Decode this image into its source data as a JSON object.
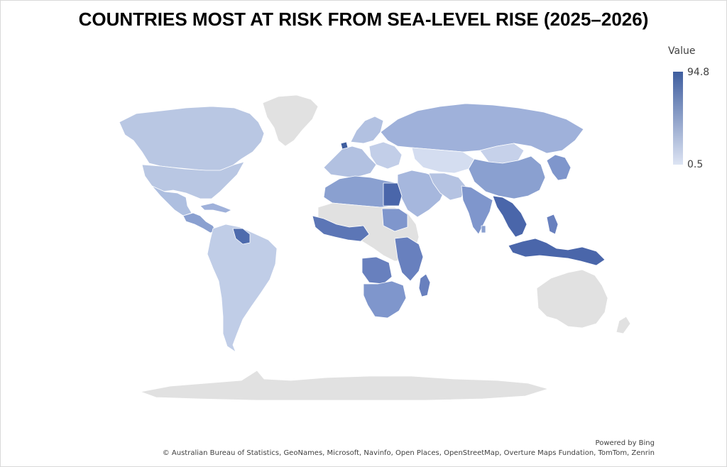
{
  "title": "COUNTRIES MOST AT RISK FROM SEA-LEVEL RISE (2025–2026)",
  "legend": {
    "title": "Value",
    "max_label": "94.8",
    "min_label": "0.5",
    "max": 94.8,
    "min": 0.5,
    "color_high": "#3f5e9f",
    "color_low": "#dde4f3"
  },
  "no_data_color": "#e1e1e1",
  "footer": {
    "powered_by": "Powered by Bing",
    "attribution": "© Australian Bureau of Statistics, GeoNames, Microsoft, Navinfo, Open Places, OpenStreetMap, Overture Maps Fundation, TomTom, Zenrin"
  }
}
